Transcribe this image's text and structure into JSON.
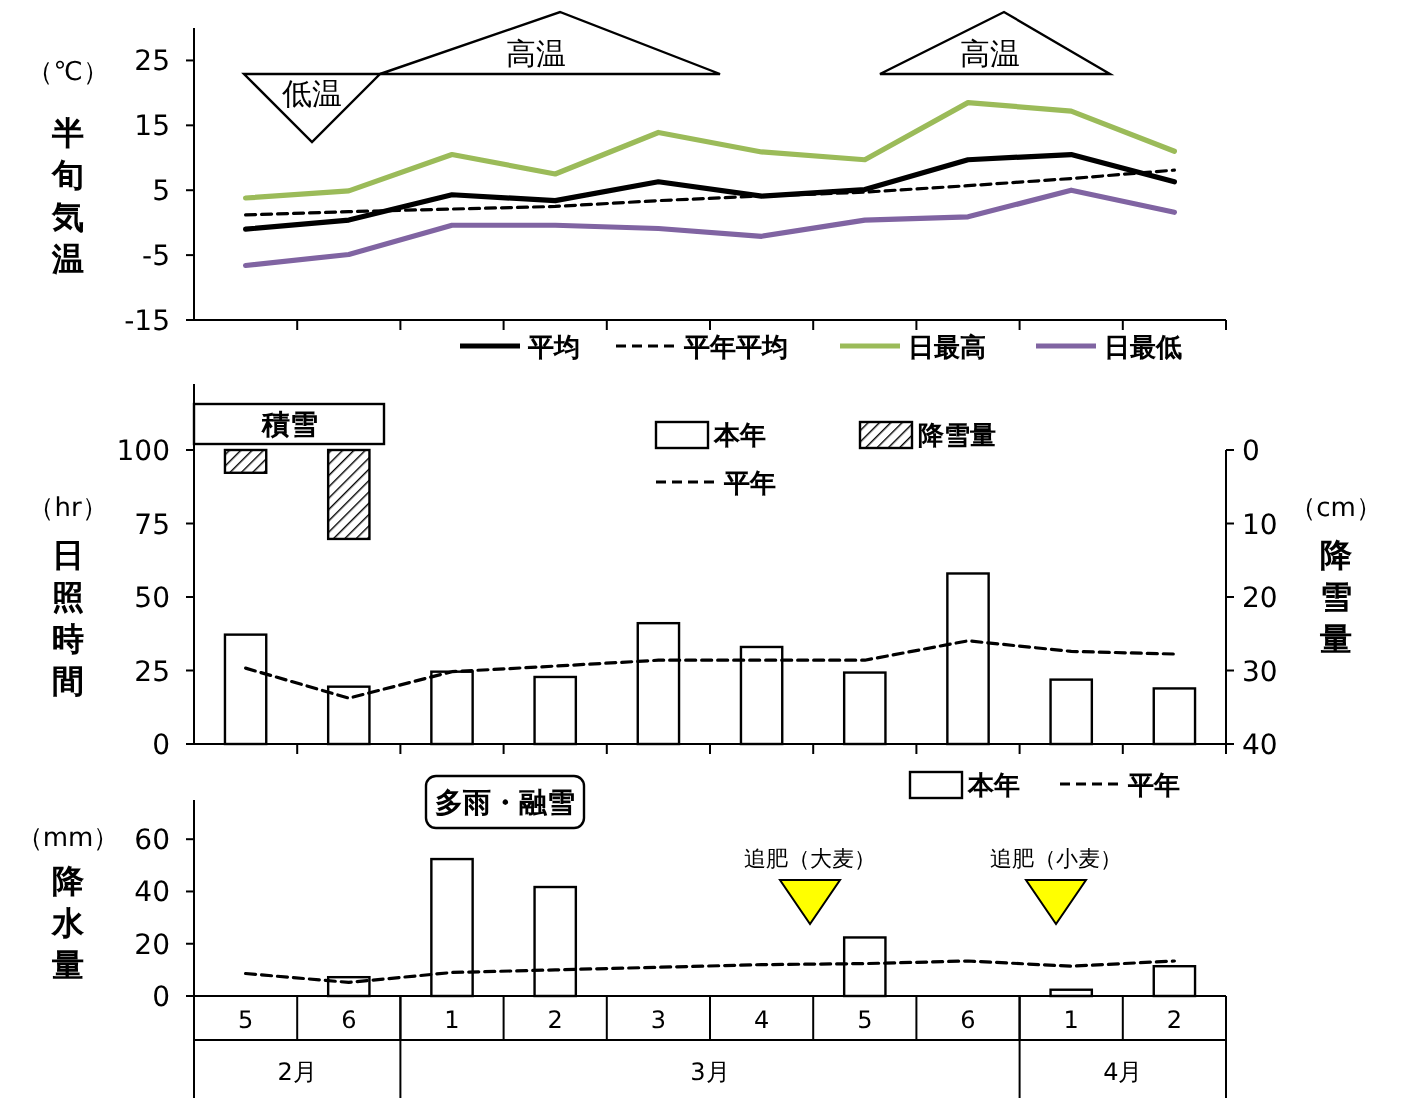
{
  "chart_data": [
    {
      "type": "line",
      "ylabel": "（℃）半旬気温",
      "categories": [
        "5",
        "6",
        "1",
        "2",
        "3",
        "4",
        "5",
        "6",
        "1",
        "2"
      ],
      "ylim": [
        -15,
        30
      ],
      "yticks": [
        25,
        15,
        5,
        -5,
        -15
      ],
      "tick_labels": "y",
      "legend": "bottom",
      "annotations": [
        "低温",
        "高温",
        "高温"
      ],
      "series": [
        {
          "name": "平均",
          "color": "#000000",
          "line_style": "solid",
          "values": [
            -1.0,
            0.4,
            4.3,
            3.4,
            6.3,
            4.1,
            5.1,
            9.7,
            10.5,
            6.3
          ]
        },
        {
          "name": "平年平均",
          "color": "#000000",
          "line_style": "dashed",
          "values": [
            1.2,
            1.7,
            2.1,
            2.5,
            3.4,
            4.1,
            4.7,
            5.7,
            6.8,
            8.1
          ]
        },
        {
          "name": "日最高",
          "color": "#9bbb59",
          "line_style": "solid",
          "values": [
            3.8,
            4.9,
            10.5,
            7.5,
            13.9,
            10.9,
            9.7,
            18.5,
            17.2,
            11.0
          ]
        },
        {
          "name": "日最低",
          "color": "#8064a2",
          "line_style": "solid",
          "values": [
            -6.6,
            -4.9,
            -0.4,
            -0.4,
            -0.9,
            -2.1,
            0.4,
            0.9,
            5.0,
            1.6
          ]
        }
      ]
    },
    {
      "type": "bar",
      "ylabel": "（hr）日照時間",
      "y2label": "（cm）降雪量",
      "categories": [
        "5",
        "6",
        "1",
        "2",
        "3",
        "4",
        "5",
        "6",
        "1",
        "2"
      ],
      "ylim": [
        0,
        100
      ],
      "yticks": [
        0,
        25,
        50,
        75,
        100
      ],
      "y2lim": [
        40,
        0
      ],
      "y2ticks": [
        0,
        10,
        20,
        30,
        40
      ],
      "tick_labels": "y",
      "legend": "top",
      "annotations": [
        "積雪"
      ],
      "series": [
        {
          "name": "本年",
          "type": "bar",
          "color": "#ffffff",
          "values": [
            37.2,
            19.5,
            24.6,
            22.8,
            41.1,
            33,
            24.3,
            58,
            21.9,
            18.9
          ]
        },
        {
          "name": "降雪量",
          "type": "bar",
          "axis": "y2",
          "color": "#000000",
          "values": [
            3.1,
            12.1,
            null,
            null,
            null,
            null,
            null,
            null,
            null,
            null
          ]
        },
        {
          "name": "平年",
          "type": "line",
          "color": "#000000",
          "line_style": "dashed",
          "values": [
            25.8,
            15.6,
            24.6,
            26.5,
            28.5,
            28.5,
            28.5,
            35.1,
            31.5,
            30.6
          ]
        }
      ]
    },
    {
      "type": "bar",
      "ylabel": "（mm）降水量",
      "categories": [
        "5",
        "6",
        "1",
        "2",
        "3",
        "4",
        "5",
        "6",
        "1",
        "2"
      ],
      "ylim": [
        0,
        75
      ],
      "yticks": [
        0,
        20,
        40,
        60
      ],
      "legend": "top right",
      "annotations": [
        "多雨・融雪",
        "追肥（大麦）",
        "追肥（小麦）",
        "2月",
        "3月",
        "4月"
      ],
      "series": [
        {
          "name": "本年",
          "type": "bar",
          "color": "#ffffff",
          "values": [
            null,
            7.2,
            52.4,
            41.7,
            null,
            null,
            22.4,
            null,
            2.4,
            11.4
          ]
        },
        {
          "name": "平年",
          "type": "line",
          "color": "#000000",
          "line_style": "dashed",
          "values": [
            8.6,
            5.2,
            9,
            10,
            11,
            12,
            12.4,
            13.4,
            11.4,
            13.4
          ]
        }
      ]
    }
  ]
}
